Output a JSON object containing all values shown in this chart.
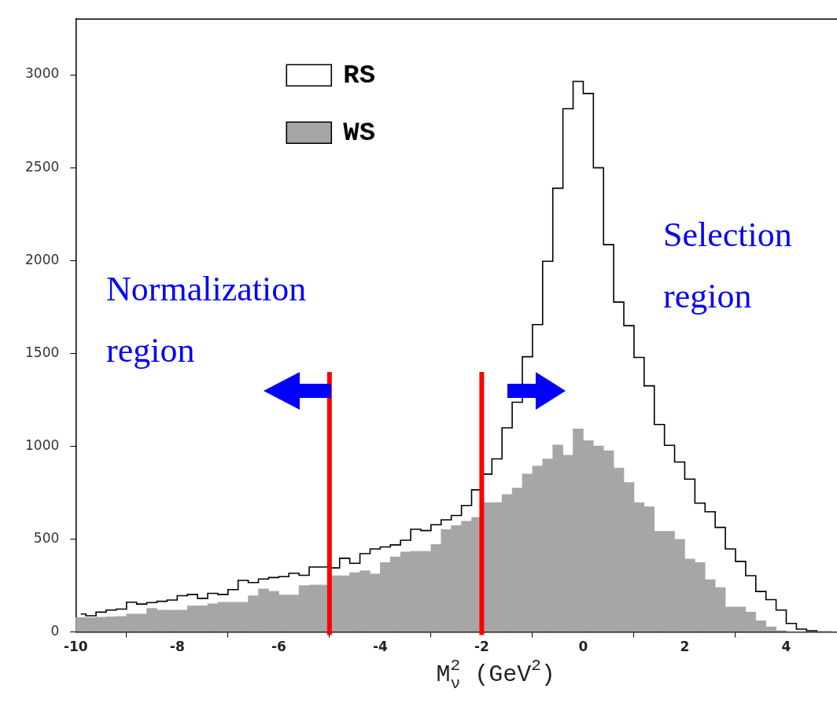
{
  "chart_data": {
    "type": "histogram",
    "xlabel": "M$_{ν}$$^{2}$ (GeV$^{2}$)",
    "bins": [
      -10,
      -9.8,
      -9.6,
      -9.4,
      -9.2,
      -9,
      -8.8,
      -8.6,
      -8.4,
      -8.2,
      -8,
      -7.8,
      -7.6,
      -7.4,
      -7.2,
      -7,
      -6.8,
      -6.6,
      -6.4,
      -6.2,
      -6,
      -5.8,
      -5.6,
      -5.4,
      -5.2,
      -5,
      -4.8,
      -4.6,
      -4.4,
      -4.2,
      -4,
      -3.8,
      -3.6,
      -3.4,
      -3.2,
      -3,
      -2.8,
      -2.6,
      -2.4,
      -2.2,
      -2,
      -1.8,
      -1.6,
      -1.4,
      -1.2,
      -1,
      -0.8,
      -0.6,
      -0.4,
      -0.2,
      0,
      0.2,
      0.4,
      0.6,
      0.8,
      1,
      1.2,
      1.4,
      1.6,
      1.8,
      2,
      2.2,
      2.4,
      2.6,
      2.8,
      3,
      3.2,
      3.4,
      3.6,
      3.8,
      4,
      4.2,
      4.4,
      4.6,
      4.8,
      5
    ],
    "series": [
      {
        "name": "RS",
        "type": "step",
        "color": "#000000",
        "x": [
          -9.9,
          -9.7,
          -9.5,
          -9.3,
          -9.1,
          -8.9,
          -8.7,
          -8.5,
          -8.3,
          -8.1,
          -7.9,
          -7.7,
          -7.5,
          -7.3,
          -7.1,
          -6.9,
          -6.7,
          -6.5,
          -6.3,
          -6.1,
          -5.9,
          -5.7,
          -5.5,
          -5.3,
          -5.1,
          -4.9,
          -4.7,
          -4.5,
          -4.3,
          -4.1,
          -3.9,
          -3.7,
          -3.5,
          -3.3,
          -3.1,
          -2.9,
          -2.7,
          -2.5,
          -2.3,
          -2.1,
          -1.9,
          -1.7,
          -1.5,
          -1.3,
          -1.1,
          -0.9,
          -0.7,
          -0.5,
          -0.3,
          -0.1,
          0.1,
          0.3,
          0.5,
          0.7,
          0.9,
          1.1,
          1.3,
          1.5,
          1.7,
          1.9,
          2.1,
          2.3,
          2.5,
          2.7,
          2.9,
          3.1,
          3.3,
          3.5,
          3.7,
          3.9,
          4.1,
          4.3,
          4.5,
          4.7,
          4.9
        ],
        "values": [
          97,
          87,
          107,
          118,
          123,
          160,
          150,
          158,
          165,
          172,
          195,
          202,
          181,
          208,
          202,
          228,
          278,
          266,
          285,
          293,
          298,
          316,
          305,
          350,
          350,
          345,
          397,
          370,
          422,
          447,
          458,
          469,
          494,
          553,
          546,
          577,
          604,
          627,
          681,
          765,
          850,
          932,
          1099,
          1237,
          1482,
          1655,
          1996,
          2389,
          2817,
          2964,
          2899,
          2499,
          2085,
          1776,
          1649,
          1478,
          1325,
          1117,
          1005,
          915,
          823,
          694,
          647,
          563,
          447,
          380,
          303,
          218,
          174,
          118,
          46,
          15,
          7,
          0,
          0
        ]
      },
      {
        "name": "WS",
        "color": "#a6a6a6",
        "values": [
          77,
          77,
          80,
          82,
          84,
          96,
          96,
          127,
          118,
          118,
          118,
          141,
          141,
          151,
          160,
          160,
          160,
          195,
          232,
          219,
          199,
          199,
          250,
          253,
          253,
          303,
          303,
          320,
          329,
          312,
          374,
          404,
          431,
          434,
          434,
          471,
          552,
          573,
          596,
          617,
          697,
          697,
          740,
          775,
          850,
          893,
          932,
          1007,
          952,
          1093,
          1030,
          1001,
          976,
          883,
          805,
          697,
          674,
          542,
          542,
          499,
          393,
          374,
          282,
          239,
          134,
          134,
          107,
          60,
          28,
          7,
          0,
          0,
          0,
          0,
          0
        ]
      }
    ],
    "xlim": [
      -10,
      5
    ],
    "xticks": [
      -10,
      -8,
      -6,
      -4,
      -2,
      0,
      2,
      4
    ],
    "ylim": [
      0,
      3300
    ],
    "yticks": [
      0,
      500,
      1000,
      1500,
      2000,
      2500,
      3000
    ],
    "ref_lines": [
      {
        "axis": "x",
        "value": -5,
        "color": "#ff0000"
      },
      {
        "axis": "x",
        "value": -2,
        "color": "#ff0000"
      }
    ],
    "annotations": [
      "Normalization region",
      "Selection region"
    ],
    "legend": "top left"
  }
}
